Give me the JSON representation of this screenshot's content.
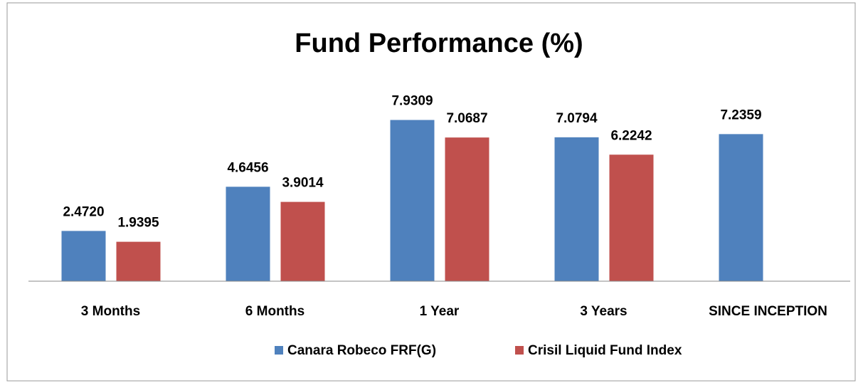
{
  "chart_data": {
    "type": "bar",
    "title": "Fund Performance (%)",
    "categories": [
      "3 Months",
      "6 Months",
      "1 Year",
      "3 Years",
      "SINCE INCEPTION"
    ],
    "series": [
      {
        "name": "Canara Robeco FRF(G)",
        "color": "#4f81bd",
        "values": [
          2.472,
          4.6456,
          7.9309,
          7.0794,
          7.2359
        ],
        "value_labels": [
          "2.4720",
          "4.6456",
          "7.9309",
          "7.0794",
          "7.2359"
        ]
      },
      {
        "name": "Crisil Liquid Fund Index",
        "color": "#c0504d",
        "values": [
          1.9395,
          3.9014,
          7.0687,
          6.2242,
          null
        ],
        "value_labels": [
          "1.9395",
          "3.9014",
          "7.0687",
          "6.2242",
          null
        ]
      }
    ],
    "ylim": [
      0,
      9
    ],
    "legend": "bottom"
  }
}
